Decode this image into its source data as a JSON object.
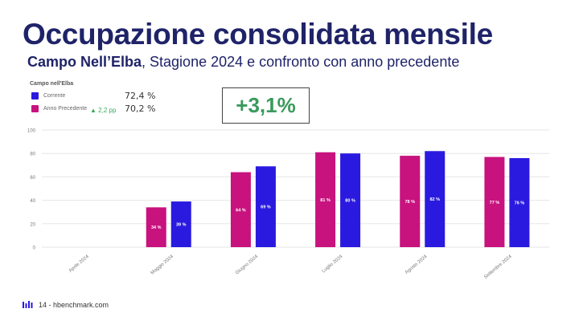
{
  "title": "Occupazione consolidata mensile",
  "subtitle": {
    "bold": "Campo Nell’Elba",
    "rest": ", Stagione 2024 e confronto con anno precedente"
  },
  "legend": {
    "title": "Campo nell'Elba",
    "items": [
      {
        "label": "Corrente",
        "value": "72,4 %",
        "color": "#2a1ae0"
      },
      {
        "label": "Anno Precedente",
        "value": "70,2 %",
        "color": "#c8127e",
        "delta": "2,2 pp"
      }
    ]
  },
  "highlight": "+3,1%",
  "footer": "14 - hbenchmark.com",
  "chart_data": {
    "type": "bar",
    "categories": [
      "Aprile 2024",
      "Maggio 2024",
      "Giugno 2024",
      "Luglio 2024",
      "Agosto 2024",
      "Settembre 2024"
    ],
    "series": [
      {
        "name": "Anno Precedente",
        "color": "#c8127e",
        "values": [
          null,
          34,
          64,
          81,
          78,
          77
        ],
        "labels": [
          "",
          "34 %",
          "64 %",
          "81 %",
          "78 %",
          "77 %"
        ]
      },
      {
        "name": "Corrente",
        "color": "#2a1ae0",
        "values": [
          null,
          39,
          69,
          80,
          82,
          76
        ],
        "labels": [
          "",
          "39 %",
          "69 %",
          "80 %",
          "82 %",
          "76 %"
        ]
      }
    ],
    "yticks": [
      "100",
      "80",
      "60",
      "40",
      "20",
      "0"
    ],
    "ylim": [
      0,
      100
    ],
    "grid": true
  }
}
